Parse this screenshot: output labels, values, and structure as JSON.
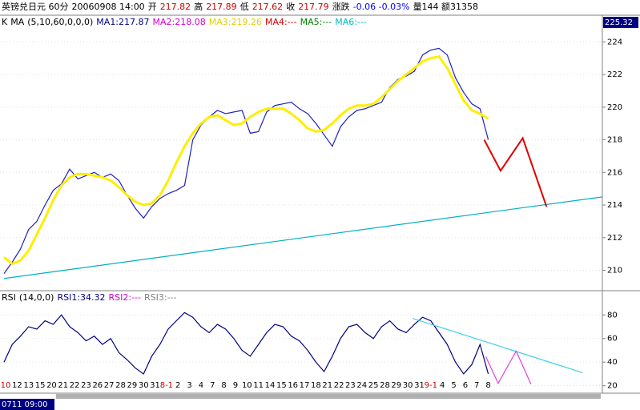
{
  "header": [
    {
      "text": "英镑兑日元 60分",
      "color": "#000000"
    },
    {
      "text": "20060908 14:00",
      "color": "#000000"
    },
    {
      "text": "开",
      "color": "#000000"
    },
    {
      "text": "217.82",
      "color": "#d00000"
    },
    {
      "text": "高",
      "color": "#000000"
    },
    {
      "text": "217.89",
      "color": "#d00000"
    },
    {
      "text": "低",
      "color": "#000000"
    },
    {
      "text": "217.62",
      "color": "#d00000"
    },
    {
      "text": "收",
      "color": "#000000"
    },
    {
      "text": "217.79",
      "color": "#d00000"
    },
    {
      "text": "涨跌",
      "color": "#000000"
    },
    {
      "text": "-0.06 -0.03%",
      "color": "#0000ff"
    },
    {
      "text": "量144 额31358",
      "color": "#000000"
    }
  ],
  "chart_data": [
    {
      "type": "line",
      "legend": [
        {
          "text": "K",
          "color": "#000000"
        },
        {
          "text": "MA",
          "color": "#000000"
        },
        {
          "text": "(5,10,60,0,0,0)",
          "color": "#000000"
        },
        {
          "text": "MA1:217.87",
          "color": "#000080"
        },
        {
          "text": "MA2:218.08",
          "color": "#d000d0"
        },
        {
          "text": "MA3:219.26",
          "color": "#e0d000"
        },
        {
          "text": "MA4:---",
          "color": "#d00000"
        },
        {
          "text": "MA5:---",
          "color": "#008000"
        },
        {
          "text": "MA6:---",
          "color": "#00c0c0"
        }
      ],
      "top_label": "225.32",
      "x": [
        0,
        1,
        2,
        3,
        4,
        5,
        6,
        7,
        8,
        9,
        10,
        11,
        12,
        13,
        14,
        15,
        16,
        17,
        18,
        19,
        20,
        21,
        22,
        23,
        24,
        25,
        26,
        27,
        28,
        29,
        30,
        31,
        32,
        33,
        34,
        35,
        36,
        37,
        38,
        39,
        40,
        41,
        42,
        43,
        44,
        45,
        46,
        47,
        48,
        49,
        50,
        51,
        52,
        53,
        54,
        55,
        56,
        57,
        58,
        59
      ],
      "series": [
        {
          "name": "K",
          "color": "#2020c0",
          "values": [
            209.8,
            210.5,
            211.3,
            212.5,
            213.0,
            214.0,
            214.9,
            215.3,
            216.2,
            215.6,
            215.8,
            216.0,
            215.7,
            215.9,
            215.5,
            214.6,
            213.8,
            213.2,
            213.9,
            214.4,
            214.7,
            214.9,
            215.2,
            218.0,
            218.9,
            219.4,
            219.8,
            219.6,
            219.7,
            219.8,
            218.4,
            218.5,
            219.7,
            220.1,
            220.2,
            220.3,
            219.9,
            219.6,
            219.0,
            218.3,
            217.6,
            218.8,
            219.4,
            219.8,
            219.9,
            220.1,
            220.3,
            221.2,
            221.7,
            221.9,
            222.2,
            223.2,
            223.5,
            223.6,
            223.2,
            221.8,
            220.9,
            220.2,
            219.9,
            218.0
          ]
        },
        {
          "name": "MA3",
          "color": "#ffee00",
          "values": [
            210.8,
            210.4,
            210.6,
            211.2,
            212.2,
            213.2,
            214.3,
            215.2,
            215.7,
            215.9,
            215.9,
            215.8,
            215.7,
            215.5,
            215.1,
            214.6,
            214.2,
            214.0,
            214.1,
            214.6,
            215.5,
            216.6,
            217.6,
            218.4,
            219.0,
            219.4,
            219.5,
            219.2,
            218.9,
            219.0,
            219.4,
            219.7,
            219.9,
            219.9,
            219.9,
            219.6,
            219.2,
            218.7,
            218.5,
            218.6,
            219.0,
            219.5,
            219.9,
            220.1,
            220.1,
            220.2,
            220.6,
            221.1,
            221.6,
            222.0,
            222.4,
            222.8,
            223.0,
            223.1,
            222.4,
            221.4,
            220.4,
            219.8,
            219.6,
            219.3
          ]
        }
      ],
      "lines": [
        {
          "color": "#00b0c0",
          "x": [
            0,
            72.9
          ],
          "y": [
            209.5,
            214.5
          ]
        },
        {
          "color": "#e00000",
          "x": [
            58.5,
            60.5,
            63.2,
            66.1
          ],
          "y": [
            218.0,
            216.1,
            218.1,
            213.9
          ]
        }
      ],
      "xlim": [
        0,
        72.9
      ],
      "ylim": [
        208.8,
        224.7
      ],
      "yticks": [
        210,
        212,
        214,
        216,
        218,
        220,
        222,
        224
      ]
    },
    {
      "type": "line",
      "legend": [
        {
          "text": "RSI",
          "color": "#000000"
        },
        {
          "text": "(14,0,0)",
          "color": "#000000"
        },
        {
          "text": "RSI1:34.32",
          "color": "#000080"
        },
        {
          "text": "RSI2:---",
          "color": "#d000d0"
        },
        {
          "text": "RSI3:---",
          "color": "#808080"
        }
      ],
      "x": [
        0,
        1,
        2,
        3,
        4,
        5,
        6,
        7,
        8,
        9,
        10,
        11,
        12,
        13,
        14,
        15,
        16,
        17,
        18,
        19,
        20,
        21,
        22,
        23,
        24,
        25,
        26,
        27,
        28,
        29,
        30,
        31,
        32,
        33,
        34,
        35,
        36,
        37,
        38,
        39,
        40,
        41,
        42,
        43,
        44,
        45,
        46,
        47,
        48,
        49,
        50,
        51,
        52,
        53,
        54,
        55,
        56,
        57,
        58,
        59
      ],
      "series": [
        {
          "name": "RSI1",
          "color": "#000080",
          "values": [
            40,
            55,
            62,
            70,
            68,
            75,
            72,
            80,
            70,
            65,
            58,
            62,
            55,
            60,
            48,
            42,
            35,
            30,
            45,
            55,
            68,
            75,
            82,
            78,
            70,
            65,
            72,
            68,
            60,
            50,
            45,
            55,
            65,
            72,
            70,
            62,
            58,
            50,
            40,
            32,
            45,
            60,
            70,
            72,
            65,
            60,
            70,
            75,
            68,
            65,
            72,
            78,
            75,
            65,
            55,
            40,
            30,
            38,
            55,
            30
          ]
        }
      ],
      "lines": [
        {
          "color": "#40d0e0",
          "x": [
            49.8,
            70.5
          ],
          "y": [
            77,
            31
          ]
        },
        {
          "color": "#e040e0",
          "x": [
            58.7,
            60.2,
            62.4,
            64.2
          ],
          "y": [
            44.7,
            22,
            49.3,
            21.3
          ]
        }
      ],
      "xlim": [
        0,
        72.9
      ],
      "ylim": [
        13,
        89
      ],
      "yticks": [
        20,
        40,
        60,
        80
      ],
      "xticks": [
        {
          "value": 0.2,
          "label": "10",
          "color": "#d00000"
        },
        {
          "value": 1.6,
          "label": "12",
          "color": "#000000"
        },
        {
          "value": 3.0,
          "label": "13",
          "color": "#000000"
        },
        {
          "value": 4.4,
          "label": "15",
          "color": "#000000"
        },
        {
          "value": 5.8,
          "label": "20",
          "color": "#000000"
        },
        {
          "value": 7.2,
          "label": "21",
          "color": "#000000"
        },
        {
          "value": 8.6,
          "label": "22",
          "color": "#000000"
        },
        {
          "value": 10.0,
          "label": "23",
          "color": "#000000"
        },
        {
          "value": 11.4,
          "label": "26",
          "color": "#000000"
        },
        {
          "value": 12.8,
          "label": "27",
          "color": "#000000"
        },
        {
          "value": 14.2,
          "label": "28",
          "color": "#000000"
        },
        {
          "value": 15.6,
          "label": "29",
          "color": "#000000"
        },
        {
          "value": 17.0,
          "label": "30",
          "color": "#000000"
        },
        {
          "value": 18.4,
          "label": "31",
          "color": "#000000"
        },
        {
          "value": 19.8,
          "label": "8-1",
          "color": "#d00000"
        },
        {
          "value": 21.2,
          "label": "2",
          "color": "#000000"
        },
        {
          "value": 22.6,
          "label": "3",
          "color": "#000000"
        },
        {
          "value": 24.0,
          "label": "4",
          "color": "#000000"
        },
        {
          "value": 25.4,
          "label": "7",
          "color": "#000000"
        },
        {
          "value": 26.8,
          "label": "8",
          "color": "#000000"
        },
        {
          "value": 28.2,
          "label": "9",
          "color": "#000000"
        },
        {
          "value": 29.6,
          "label": "10",
          "color": "#000000"
        },
        {
          "value": 31.0,
          "label": "11",
          "color": "#000000"
        },
        {
          "value": 32.4,
          "label": "14",
          "color": "#000000"
        },
        {
          "value": 33.8,
          "label": "15",
          "color": "#000000"
        },
        {
          "value": 35.2,
          "label": "16",
          "color": "#000000"
        },
        {
          "value": 36.6,
          "label": "17",
          "color": "#000000"
        },
        {
          "value": 38.0,
          "label": "18",
          "color": "#000000"
        },
        {
          "value": 39.4,
          "label": "21",
          "color": "#000000"
        },
        {
          "value": 40.8,
          "label": "22",
          "color": "#000000"
        },
        {
          "value": 42.2,
          "label": "23",
          "color": "#000000"
        },
        {
          "value": 43.6,
          "label": "24",
          "color": "#000000"
        },
        {
          "value": 45.0,
          "label": "25",
          "color": "#000000"
        },
        {
          "value": 46.4,
          "label": "28",
          "color": "#000000"
        },
        {
          "value": 47.8,
          "label": "29",
          "color": "#000000"
        },
        {
          "value": 49.2,
          "label": "30",
          "color": "#000000"
        },
        {
          "value": 50.6,
          "label": "31",
          "color": "#000000"
        },
        {
          "value": 52.0,
          "label": "9-1",
          "color": "#d00000"
        },
        {
          "value": 53.4,
          "label": "4",
          "color": "#000000"
        },
        {
          "value": 54.8,
          "label": "5",
          "color": "#000000"
        },
        {
          "value": 56.2,
          "label": "6",
          "color": "#000000"
        },
        {
          "value": 57.6,
          "label": "7",
          "color": "#000000"
        },
        {
          "value": 59.0,
          "label": "8",
          "color": "#000000"
        }
      ],
      "cursor_label": "0711 09:00"
    }
  ]
}
